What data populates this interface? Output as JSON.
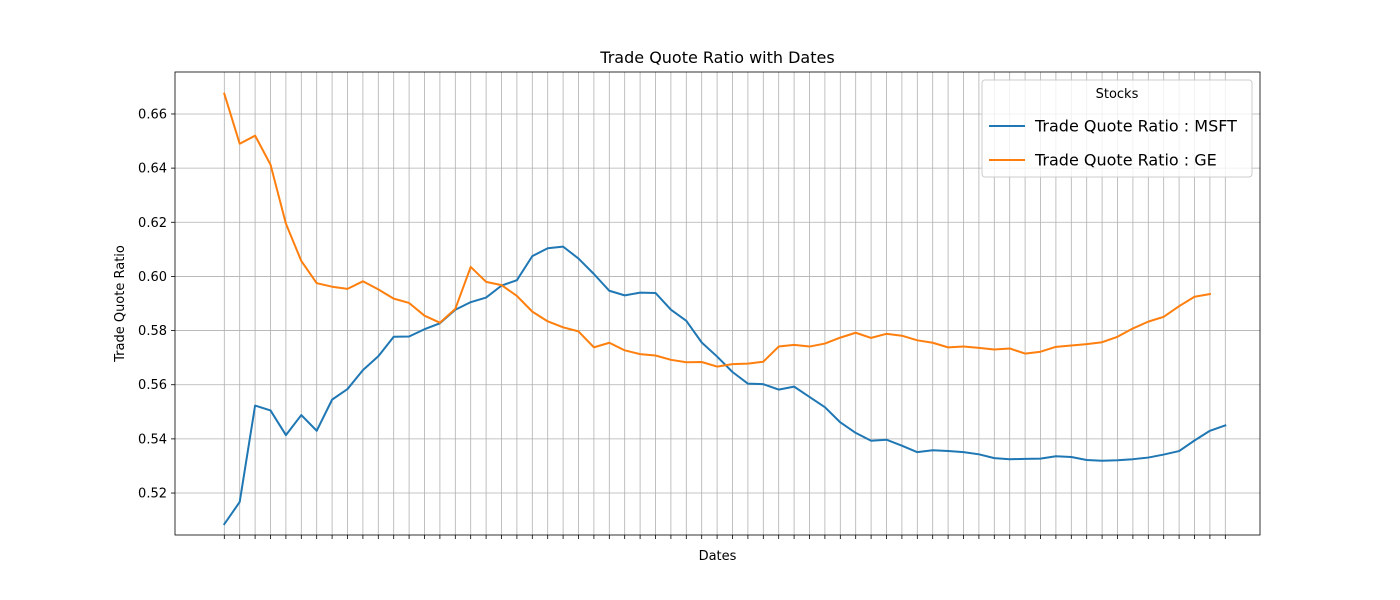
{
  "chart_data": {
    "type": "line",
    "title": "Trade Quote Ratio with Dates",
    "xlabel": "Dates",
    "ylabel": "Trade Quote Ratio",
    "ylim": [
      0.5045,
      0.6755
    ],
    "yticks": [
      0.52,
      0.54,
      0.56,
      0.58,
      0.6,
      0.62,
      0.64,
      0.66
    ],
    "ytick_labels": [
      "0.52",
      "0.54",
      "0.56",
      "0.58",
      "0.60",
      "0.62",
      "0.64",
      "0.66"
    ],
    "x_tick_labels_visible": false,
    "grid": true,
    "legend": {
      "title": "Stocks",
      "placement": "top-right"
    },
    "series": [
      {
        "name": "Trade Quote Ratio : MSFT",
        "color": "#1f77b4",
        "values": [
          0.5085,
          0.5167,
          0.5523,
          0.5505,
          0.5414,
          0.5488,
          0.543,
          0.5545,
          0.5584,
          0.5654,
          0.5705,
          0.5777,
          0.5778,
          0.5805,
          0.5827,
          0.5877,
          0.5905,
          0.5922,
          0.5966,
          0.5986,
          0.6075,
          0.6104,
          0.611,
          0.6066,
          0.6009,
          0.5947,
          0.593,
          0.594,
          0.5939,
          0.5877,
          0.5836,
          0.5756,
          0.5704,
          0.5647,
          0.5604,
          0.5602,
          0.5582,
          0.5593,
          0.5555,
          0.5517,
          0.5461,
          0.5422,
          0.5393,
          0.5397,
          0.5375,
          0.5351,
          0.5358,
          0.5355,
          0.5351,
          0.5343,
          0.5329,
          0.5325,
          0.5326,
          0.5327,
          0.5336,
          0.5333,
          0.5322,
          0.5319,
          0.5321,
          0.5325,
          0.5331,
          0.5342,
          0.5355,
          0.5394,
          0.543,
          0.545
        ]
      },
      {
        "name": "Trade Quote Ratio : GE",
        "color": "#ff7f0e",
        "values": [
          0.6675,
          0.649,
          0.652,
          0.6413,
          0.6195,
          0.6057,
          0.5975,
          0.5962,
          0.5954,
          0.5982,
          0.5952,
          0.5918,
          0.5902,
          0.5855,
          0.5829,
          0.588,
          0.6035,
          0.598,
          0.5968,
          0.5928,
          0.587,
          0.5834,
          0.5812,
          0.5797,
          0.5738,
          0.5755,
          0.5727,
          0.5713,
          0.5708,
          0.5692,
          0.5683,
          0.5684,
          0.5667,
          0.5676,
          0.5678,
          0.5685,
          0.5741,
          0.5747,
          0.5741,
          0.5752,
          0.5774,
          0.5792,
          0.5773,
          0.5788,
          0.5781,
          0.5764,
          0.5755,
          0.5738,
          0.5741,
          0.5736,
          0.573,
          0.5734,
          0.5715,
          0.5722,
          0.574,
          0.5745,
          0.575,
          0.5757,
          0.5777,
          0.5808,
          0.5833,
          0.5851,
          0.589,
          0.5925,
          0.5935
        ]
      }
    ]
  }
}
